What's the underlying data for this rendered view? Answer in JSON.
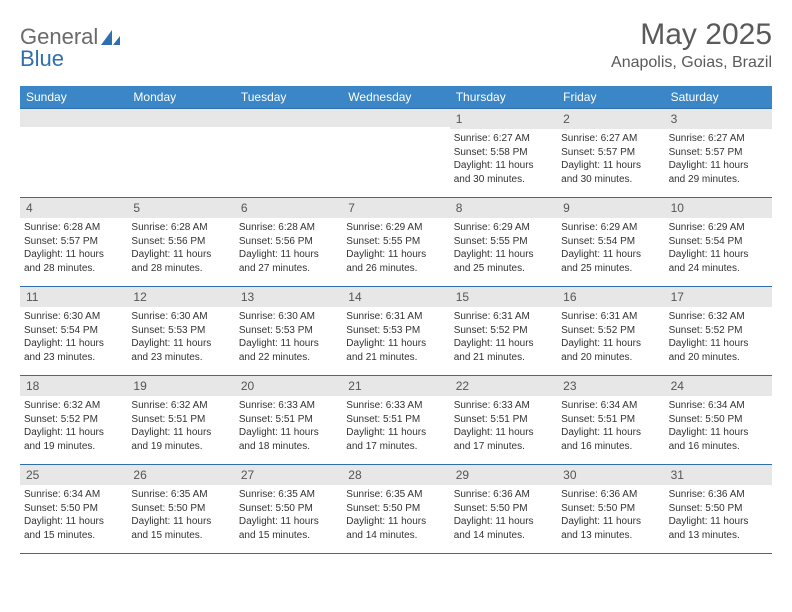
{
  "logo": {
    "text1": "General",
    "text2": "Blue"
  },
  "title": "May 2025",
  "subtitle": "Anapolis, Goias, Brazil",
  "colors": {
    "header_bg": "#3b86c7",
    "header_text": "#ffffff",
    "rule": "#2f6fb0",
    "num_bg": "#e7e7e7",
    "text": "#333333",
    "logo_blue": "#2f6fb0",
    "logo_gray": "#6a6a6a"
  },
  "day_headers": [
    "Sunday",
    "Monday",
    "Tuesday",
    "Wednesday",
    "Thursday",
    "Friday",
    "Saturday"
  ],
  "weeks": [
    [
      {
        "n": "",
        "sunrise": "",
        "sunset": "",
        "day1": "",
        "day2": ""
      },
      {
        "n": "",
        "sunrise": "",
        "sunset": "",
        "day1": "",
        "day2": ""
      },
      {
        "n": "",
        "sunrise": "",
        "sunset": "",
        "day1": "",
        "day2": ""
      },
      {
        "n": "",
        "sunrise": "",
        "sunset": "",
        "day1": "",
        "day2": ""
      },
      {
        "n": "1",
        "sunrise": "Sunrise: 6:27 AM",
        "sunset": "Sunset: 5:58 PM",
        "day1": "Daylight: 11 hours",
        "day2": "and 30 minutes."
      },
      {
        "n": "2",
        "sunrise": "Sunrise: 6:27 AM",
        "sunset": "Sunset: 5:57 PM",
        "day1": "Daylight: 11 hours",
        "day2": "and 30 minutes."
      },
      {
        "n": "3",
        "sunrise": "Sunrise: 6:27 AM",
        "sunset": "Sunset: 5:57 PM",
        "day1": "Daylight: 11 hours",
        "day2": "and 29 minutes."
      }
    ],
    [
      {
        "n": "4",
        "sunrise": "Sunrise: 6:28 AM",
        "sunset": "Sunset: 5:57 PM",
        "day1": "Daylight: 11 hours",
        "day2": "and 28 minutes."
      },
      {
        "n": "5",
        "sunrise": "Sunrise: 6:28 AM",
        "sunset": "Sunset: 5:56 PM",
        "day1": "Daylight: 11 hours",
        "day2": "and 28 minutes."
      },
      {
        "n": "6",
        "sunrise": "Sunrise: 6:28 AM",
        "sunset": "Sunset: 5:56 PM",
        "day1": "Daylight: 11 hours",
        "day2": "and 27 minutes."
      },
      {
        "n": "7",
        "sunrise": "Sunrise: 6:29 AM",
        "sunset": "Sunset: 5:55 PM",
        "day1": "Daylight: 11 hours",
        "day2": "and 26 minutes."
      },
      {
        "n": "8",
        "sunrise": "Sunrise: 6:29 AM",
        "sunset": "Sunset: 5:55 PM",
        "day1": "Daylight: 11 hours",
        "day2": "and 25 minutes."
      },
      {
        "n": "9",
        "sunrise": "Sunrise: 6:29 AM",
        "sunset": "Sunset: 5:54 PM",
        "day1": "Daylight: 11 hours",
        "day2": "and 25 minutes."
      },
      {
        "n": "10",
        "sunrise": "Sunrise: 6:29 AM",
        "sunset": "Sunset: 5:54 PM",
        "day1": "Daylight: 11 hours",
        "day2": "and 24 minutes."
      }
    ],
    [
      {
        "n": "11",
        "sunrise": "Sunrise: 6:30 AM",
        "sunset": "Sunset: 5:54 PM",
        "day1": "Daylight: 11 hours",
        "day2": "and 23 minutes."
      },
      {
        "n": "12",
        "sunrise": "Sunrise: 6:30 AM",
        "sunset": "Sunset: 5:53 PM",
        "day1": "Daylight: 11 hours",
        "day2": "and 23 minutes."
      },
      {
        "n": "13",
        "sunrise": "Sunrise: 6:30 AM",
        "sunset": "Sunset: 5:53 PM",
        "day1": "Daylight: 11 hours",
        "day2": "and 22 minutes."
      },
      {
        "n": "14",
        "sunrise": "Sunrise: 6:31 AM",
        "sunset": "Sunset: 5:53 PM",
        "day1": "Daylight: 11 hours",
        "day2": "and 21 minutes."
      },
      {
        "n": "15",
        "sunrise": "Sunrise: 6:31 AM",
        "sunset": "Sunset: 5:52 PM",
        "day1": "Daylight: 11 hours",
        "day2": "and 21 minutes."
      },
      {
        "n": "16",
        "sunrise": "Sunrise: 6:31 AM",
        "sunset": "Sunset: 5:52 PM",
        "day1": "Daylight: 11 hours",
        "day2": "and 20 minutes."
      },
      {
        "n": "17",
        "sunrise": "Sunrise: 6:32 AM",
        "sunset": "Sunset: 5:52 PM",
        "day1": "Daylight: 11 hours",
        "day2": "and 20 minutes."
      }
    ],
    [
      {
        "n": "18",
        "sunrise": "Sunrise: 6:32 AM",
        "sunset": "Sunset: 5:52 PM",
        "day1": "Daylight: 11 hours",
        "day2": "and 19 minutes."
      },
      {
        "n": "19",
        "sunrise": "Sunrise: 6:32 AM",
        "sunset": "Sunset: 5:51 PM",
        "day1": "Daylight: 11 hours",
        "day2": "and 19 minutes."
      },
      {
        "n": "20",
        "sunrise": "Sunrise: 6:33 AM",
        "sunset": "Sunset: 5:51 PM",
        "day1": "Daylight: 11 hours",
        "day2": "and 18 minutes."
      },
      {
        "n": "21",
        "sunrise": "Sunrise: 6:33 AM",
        "sunset": "Sunset: 5:51 PM",
        "day1": "Daylight: 11 hours",
        "day2": "and 17 minutes."
      },
      {
        "n": "22",
        "sunrise": "Sunrise: 6:33 AM",
        "sunset": "Sunset: 5:51 PM",
        "day1": "Daylight: 11 hours",
        "day2": "and 17 minutes."
      },
      {
        "n": "23",
        "sunrise": "Sunrise: 6:34 AM",
        "sunset": "Sunset: 5:51 PM",
        "day1": "Daylight: 11 hours",
        "day2": "and 16 minutes."
      },
      {
        "n": "24",
        "sunrise": "Sunrise: 6:34 AM",
        "sunset": "Sunset: 5:50 PM",
        "day1": "Daylight: 11 hours",
        "day2": "and 16 minutes."
      }
    ],
    [
      {
        "n": "25",
        "sunrise": "Sunrise: 6:34 AM",
        "sunset": "Sunset: 5:50 PM",
        "day1": "Daylight: 11 hours",
        "day2": "and 15 minutes."
      },
      {
        "n": "26",
        "sunrise": "Sunrise: 6:35 AM",
        "sunset": "Sunset: 5:50 PM",
        "day1": "Daylight: 11 hours",
        "day2": "and 15 minutes."
      },
      {
        "n": "27",
        "sunrise": "Sunrise: 6:35 AM",
        "sunset": "Sunset: 5:50 PM",
        "day1": "Daylight: 11 hours",
        "day2": "and 15 minutes."
      },
      {
        "n": "28",
        "sunrise": "Sunrise: 6:35 AM",
        "sunset": "Sunset: 5:50 PM",
        "day1": "Daylight: 11 hours",
        "day2": "and 14 minutes."
      },
      {
        "n": "29",
        "sunrise": "Sunrise: 6:36 AM",
        "sunset": "Sunset: 5:50 PM",
        "day1": "Daylight: 11 hours",
        "day2": "and 14 minutes."
      },
      {
        "n": "30",
        "sunrise": "Sunrise: 6:36 AM",
        "sunset": "Sunset: 5:50 PM",
        "day1": "Daylight: 11 hours",
        "day2": "and 13 minutes."
      },
      {
        "n": "31",
        "sunrise": "Sunrise: 6:36 AM",
        "sunset": "Sunset: 5:50 PM",
        "day1": "Daylight: 11 hours",
        "day2": "and 13 minutes."
      }
    ]
  ]
}
